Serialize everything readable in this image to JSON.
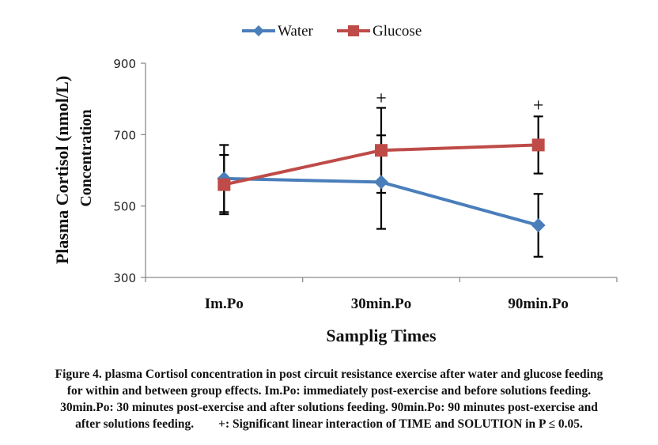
{
  "chart_data": {
    "type": "line",
    "title": "",
    "xlabel": "Samplig Times",
    "ylabel": "Plasma Cortisol (nmol/L) Concentration",
    "ylabel_lines": [
      "Plasma Cortisol (nmol/L)",
      "Concentration"
    ],
    "categories": [
      "Im.Po",
      "30min.Po",
      "90min.Po"
    ],
    "ylim": [
      300,
      900
    ],
    "yticks": [
      300,
      500,
      700,
      900
    ],
    "grid": false,
    "legend": "top-center",
    "series": [
      {
        "name": "Water",
        "color": "#4a7ebb",
        "marker": "diamond",
        "values": [
          577,
          567,
          446
        ],
        "error": [
          94,
          131,
          88
        ]
      },
      {
        "name": "Glucose",
        "color": "#be4b48",
        "marker": "square",
        "values": [
          560,
          656,
          671
        ],
        "error": [
          83,
          119,
          80
        ]
      }
    ],
    "annotations": [
      {
        "text": "+",
        "category": "30min.Po",
        "y": 805
      },
      {
        "text": "+",
        "category": "90min.Po",
        "y": 785
      }
    ]
  },
  "caption": {
    "lines": [
      "Figure 4. plasma Cortisol concentration in post circuit resistance exercise after water and glucose feeding",
      "for within and between group effects. Im.Po: immediately post-exercise and before solutions feeding.",
      "30min.Po: 30 minutes post-exercise and after solutions feeding. 90min.Po: 90 minutes post-exercise and",
      "after solutions feeding.        +: Significant linear interaction of TIME and SOLUTION in P ≤ 0.05."
    ]
  }
}
